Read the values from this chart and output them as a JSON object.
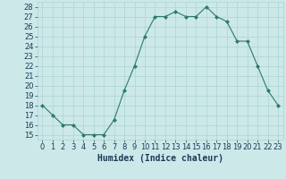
{
  "x": [
    0,
    1,
    2,
    3,
    4,
    5,
    6,
    7,
    8,
    9,
    10,
    11,
    12,
    13,
    14,
    15,
    16,
    17,
    18,
    19,
    20,
    21,
    22,
    23
  ],
  "y": [
    18,
    17,
    16,
    16,
    15,
    15,
    15,
    16.5,
    19.5,
    22,
    25,
    27,
    27,
    27.5,
    27,
    27,
    28,
    27,
    26.5,
    24.5,
    24.5,
    22,
    19.5,
    18
  ],
  "line_color": "#2d7a6a",
  "marker_color": "#2d7a6a",
  "bg_color": "#cce8e8",
  "grid_color": "#aad4d4",
  "xlabel": "Humidex (Indice chaleur)",
  "ylim": [
    14.5,
    28.5
  ],
  "xlim": [
    -0.5,
    23.5
  ],
  "yticks": [
    15,
    16,
    17,
    18,
    19,
    20,
    21,
    22,
    23,
    24,
    25,
    26,
    27,
    28
  ],
  "xticks": [
    0,
    1,
    2,
    3,
    4,
    5,
    6,
    7,
    8,
    9,
    10,
    11,
    12,
    13,
    14,
    15,
    16,
    17,
    18,
    19,
    20,
    21,
    22,
    23
  ],
  "font_color": "#1a3a5a",
  "label_fontsize": 7,
  "tick_fontsize": 6
}
